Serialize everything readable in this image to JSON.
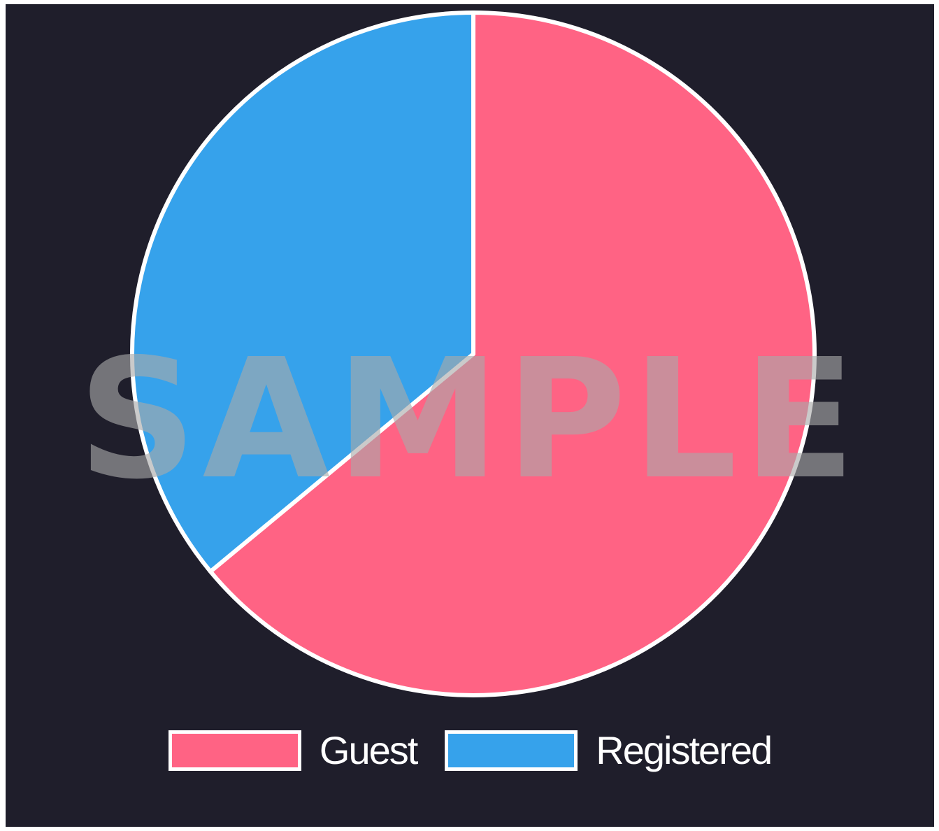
{
  "chart_data": {
    "type": "pie",
    "title": "",
    "categories": [
      "Guest",
      "Registered"
    ],
    "values": [
      64,
      36
    ],
    "colors": [
      "#ff6384",
      "#36a2eb"
    ],
    "border_color": "#ffffff",
    "legend": "bottom",
    "start_angle": "top, clockwise"
  },
  "legend": {
    "items": [
      {
        "label": "Guest",
        "color": "#ff6384"
      },
      {
        "label": "Registered",
        "color": "#36a2eb"
      }
    ]
  },
  "watermark": {
    "text": "SAMPLE"
  },
  "background_color": "#1f1e2b"
}
